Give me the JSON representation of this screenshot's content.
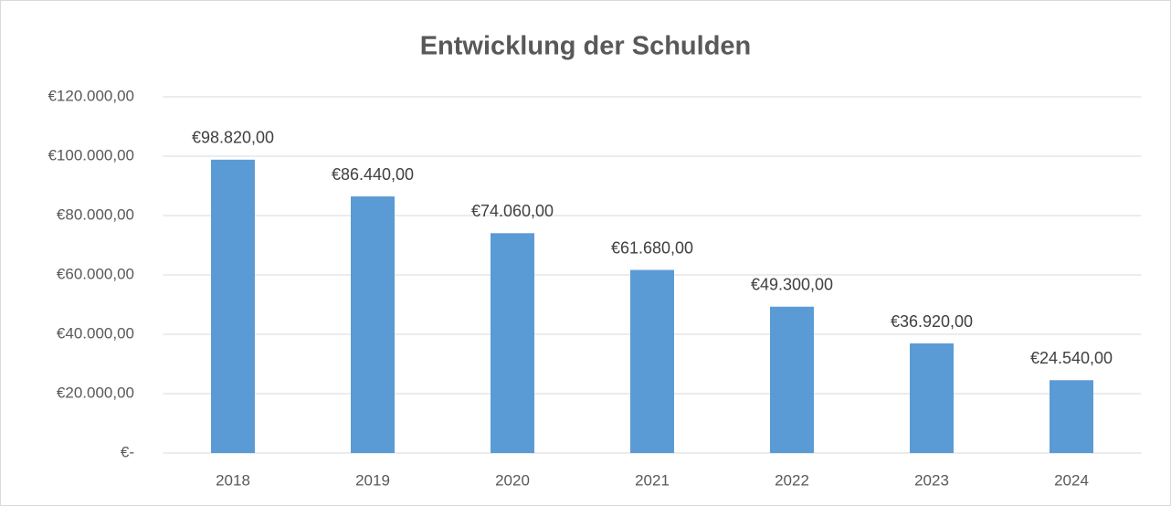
{
  "chart_data": {
    "type": "bar",
    "title": "Entwicklung der Schulden",
    "categories": [
      "2018",
      "2019",
      "2020",
      "2021",
      "2022",
      "2023",
      "2024"
    ],
    "values": [
      98820,
      86440,
      74060,
      61680,
      49300,
      36920,
      24540
    ],
    "value_labels": [
      "€98.820,00",
      "€86.440,00",
      "€74.060,00",
      "€61.680,00",
      "€49.300,00",
      "€36.920,00",
      "€24.540,00"
    ],
    "color": "#5b9bd5",
    "ylim": [
      0,
      120000
    ],
    "yticks": [
      {
        "value": 0,
        "label": "€-"
      },
      {
        "value": 20000,
        "label": "€20.000,00"
      },
      {
        "value": 40000,
        "label": "€40.000,00"
      },
      {
        "value": 60000,
        "label": "€60.000,00"
      },
      {
        "value": 80000,
        "label": "€80.000,00"
      },
      {
        "value": 100000,
        "label": "€100.000,00"
      },
      {
        "value": 120000,
        "label": "€120.000,00"
      }
    ],
    "grid": true
  }
}
